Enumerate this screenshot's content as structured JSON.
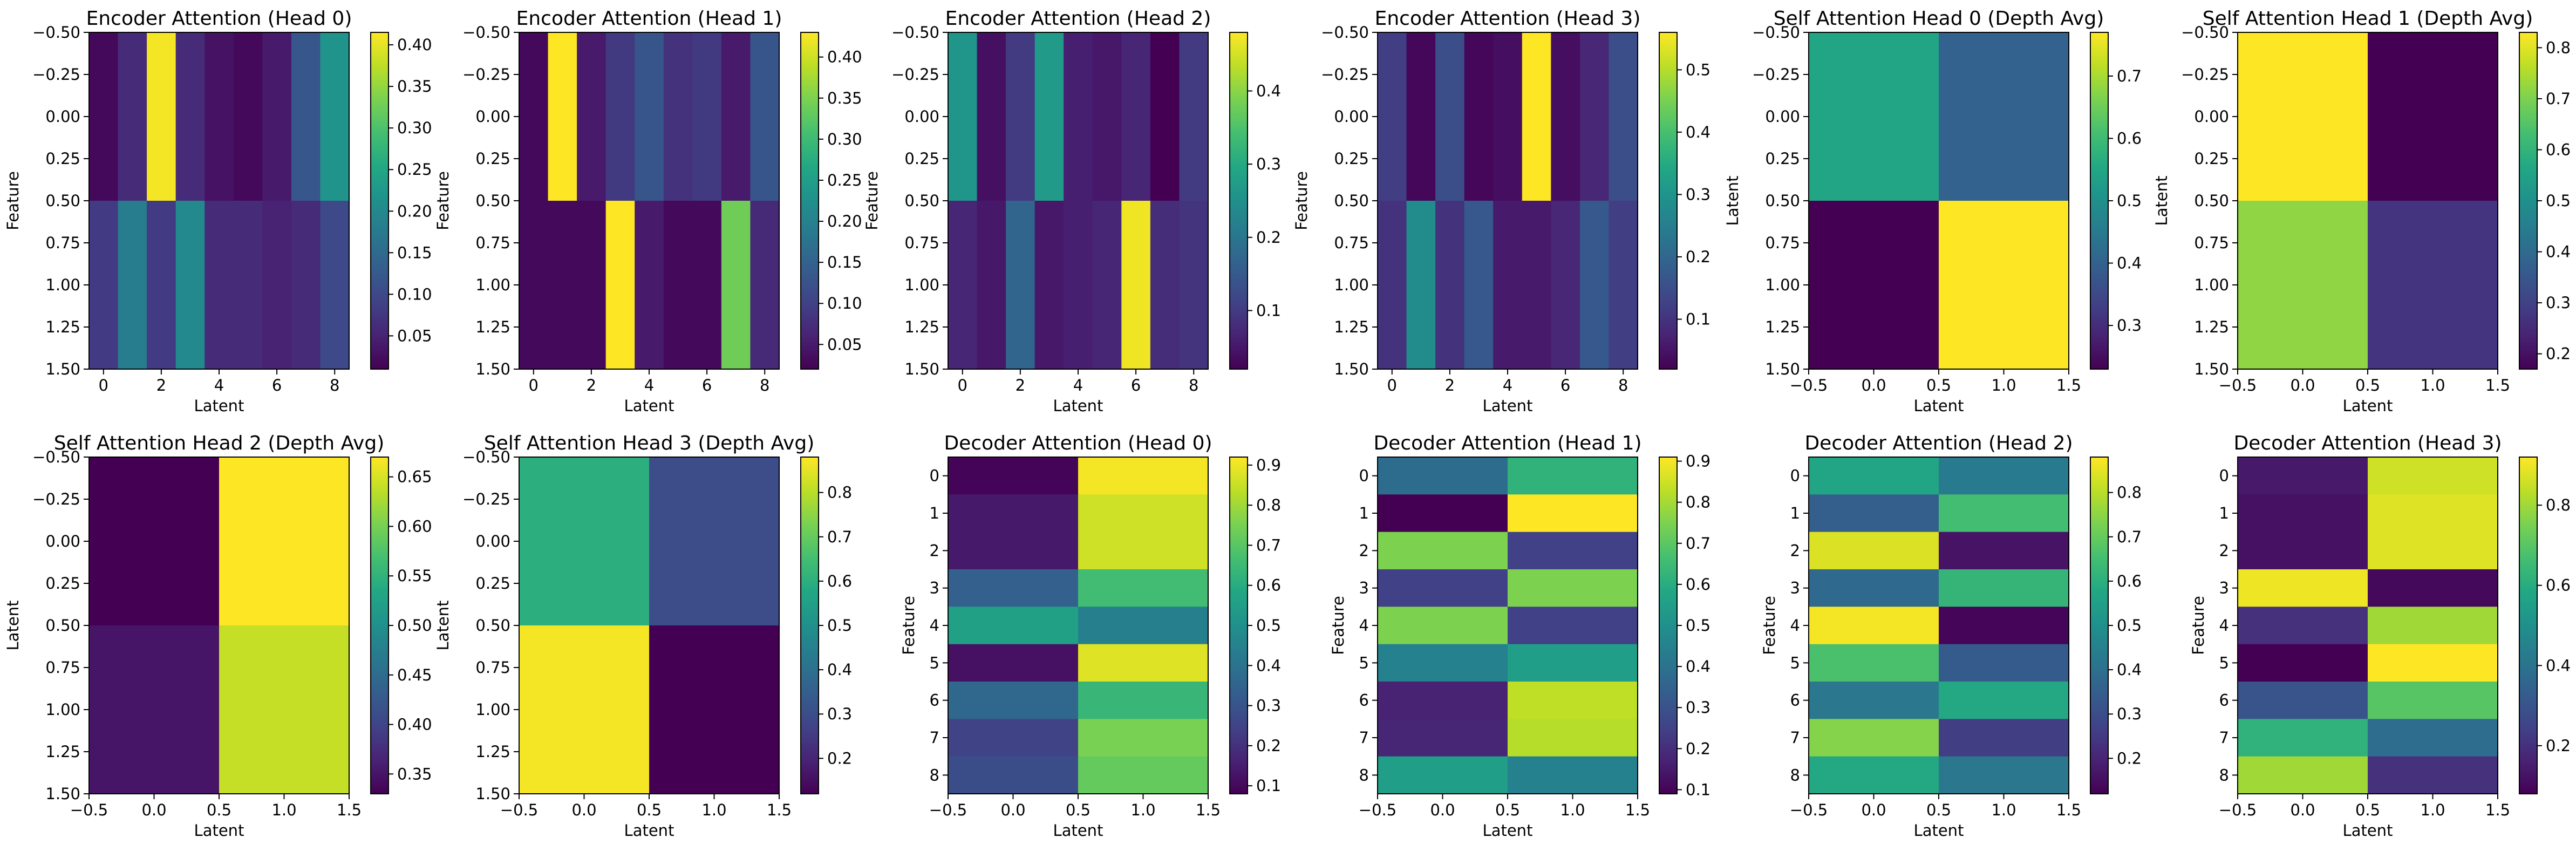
{
  "chart_data": [
    {
      "type": "heatmap",
      "title": "Encoder Attention (Head 0)",
      "xlabel": "Latent",
      "ylabel": "Feature",
      "values": [
        [
          0.02,
          0.06,
          0.41,
          0.06,
          0.03,
          0.02,
          0.04,
          0.12,
          0.22
        ],
        [
          0.08,
          0.18,
          0.08,
          0.2,
          0.06,
          0.06,
          0.05,
          0.06,
          0.1
        ]
      ],
      "x_extent": [
        -0.5,
        8.5
      ],
      "y_extent": [
        -0.5,
        1.5
      ],
      "xticks": [
        0,
        2,
        4,
        6,
        8
      ],
      "xtick_labels": [
        "0",
        "2",
        "4",
        "6",
        "8"
      ],
      "yticks": [
        -0.5,
        -0.25,
        0,
        0.25,
        0.5,
        0.75,
        1,
        1.25,
        1.5
      ],
      "ytick_labels": [
        "−0.50",
        "−0.25",
        "0.00",
        "0.25",
        "0.50",
        "0.75",
        "1.00",
        "1.25",
        "1.50"
      ],
      "colorbar": {
        "min": 0.01,
        "max": 0.415,
        "ticks": [
          "0.05",
          "0.10",
          "0.15",
          "0.20",
          "0.25",
          "0.30",
          "0.35",
          "0.40"
        ]
      }
    },
    {
      "type": "heatmap",
      "title": "Encoder Attention (Head 1)",
      "xlabel": "Latent",
      "ylabel": "Feature",
      "values": [
        [
          0.03,
          0.43,
          0.05,
          0.09,
          0.13,
          0.08,
          0.09,
          0.05,
          0.13
        ],
        [
          0.03,
          0.03,
          0.03,
          0.43,
          0.05,
          0.03,
          0.03,
          0.34,
          0.07
        ]
      ],
      "x_extent": [
        -0.5,
        8.5
      ],
      "y_extent": [
        -0.5,
        1.5
      ],
      "xticks": [
        0,
        2,
        4,
        6,
        8
      ],
      "xtick_labels": [
        "0",
        "2",
        "4",
        "6",
        "8"
      ],
      "yticks": [
        -0.5,
        -0.25,
        0,
        0.25,
        0.5,
        0.75,
        1,
        1.25,
        1.5
      ],
      "ytick_labels": [
        "−0.50",
        "−0.25",
        "0.00",
        "0.25",
        "0.50",
        "0.75",
        "1.00",
        "1.25",
        "1.50"
      ],
      "colorbar": {
        "min": 0.02,
        "max": 0.43,
        "ticks": [
          "0.05",
          "0.10",
          "0.15",
          "0.20",
          "0.25",
          "0.30",
          "0.35",
          "0.40"
        ]
      }
    },
    {
      "type": "heatmap",
      "title": "Encoder Attention (Head 2)",
      "xlabel": "Latent",
      "ylabel": "Feature",
      "values": [
        [
          0.26,
          0.04,
          0.1,
          0.27,
          0.06,
          0.05,
          0.07,
          0.02,
          0.1
        ],
        [
          0.07,
          0.05,
          0.17,
          0.05,
          0.06,
          0.07,
          0.47,
          0.08,
          0.09
        ]
      ],
      "x_extent": [
        -0.5,
        8.5
      ],
      "y_extent": [
        -0.5,
        1.5
      ],
      "xticks": [
        0,
        2,
        4,
        6,
        8
      ],
      "xtick_labels": [
        "0",
        "2",
        "4",
        "6",
        "8"
      ],
      "yticks": [
        -0.5,
        -0.25,
        0,
        0.25,
        0.5,
        0.75,
        1,
        1.25,
        1.5
      ],
      "ytick_labels": [
        "−0.50",
        "−0.25",
        "0.00",
        "0.25",
        "0.50",
        "0.75",
        "1.00",
        "1.25",
        "1.50"
      ],
      "colorbar": {
        "min": 0.02,
        "max": 0.48,
        "ticks": [
          "0.1",
          "0.2",
          "0.3",
          "0.4"
        ]
      }
    },
    {
      "type": "heatmap",
      "title": "Encoder Attention (Head 3)",
      "xlabel": "Latent",
      "ylabel": "Feature",
      "values": [
        [
          0.12,
          0.03,
          0.15,
          0.03,
          0.04,
          0.56,
          0.04,
          0.08,
          0.15
        ],
        [
          0.1,
          0.28,
          0.1,
          0.17,
          0.06,
          0.06,
          0.08,
          0.17,
          0.12
        ]
      ],
      "x_extent": [
        -0.5,
        8.5
      ],
      "y_extent": [
        -0.5,
        1.5
      ],
      "xticks": [
        0,
        2,
        4,
        6,
        8
      ],
      "xtick_labels": [
        "0",
        "2",
        "4",
        "6",
        "8"
      ],
      "yticks": [
        -0.5,
        -0.25,
        0,
        0.25,
        0.5,
        0.75,
        1,
        1.25,
        1.5
      ],
      "ytick_labels": [
        "−0.50",
        "−0.25",
        "0.00",
        "0.25",
        "0.50",
        "0.75",
        "1.00",
        "1.25",
        "1.50"
      ],
      "colorbar": {
        "min": 0.02,
        "max": 0.56,
        "ticks": [
          "0.1",
          "0.2",
          "0.3",
          "0.4",
          "0.5"
        ]
      }
    },
    {
      "type": "heatmap",
      "title": "Self Attention Head 0 (Depth Avg)",
      "xlabel": "Latent",
      "ylabel": "Latent",
      "values": [
        [
          0.55,
          0.4
        ],
        [
          0.23,
          0.77
        ]
      ],
      "x_extent": [
        -0.5,
        1.5
      ],
      "y_extent": [
        -0.5,
        1.5
      ],
      "xticks": [
        -0.5,
        0,
        0.5,
        1,
        1.5
      ],
      "xtick_labels": [
        "−0.5",
        "0.0",
        "0.5",
        "1.0",
        "1.5"
      ],
      "yticks": [
        -0.5,
        -0.25,
        0,
        0.25,
        0.5,
        0.75,
        1,
        1.25,
        1.5
      ],
      "ytick_labels": [
        "−0.50",
        "−0.25",
        "0.00",
        "0.25",
        "0.50",
        "0.75",
        "1.00",
        "1.25",
        "1.50"
      ],
      "colorbar": {
        "min": 0.23,
        "max": 0.77,
        "ticks": [
          "0.3",
          "0.4",
          "0.5",
          "0.6",
          "0.7"
        ]
      }
    },
    {
      "type": "heatmap",
      "title": "Self Attention Head 1 (Depth Avg)",
      "xlabel": "Latent",
      "ylabel": "Latent",
      "values": [
        [
          0.83,
          0.17
        ],
        [
          0.72,
          0.27
        ]
      ],
      "x_extent": [
        -0.5,
        1.5
      ],
      "y_extent": [
        -0.5,
        1.5
      ],
      "xticks": [
        -0.5,
        0,
        0.5,
        1,
        1.5
      ],
      "xtick_labels": [
        "−0.5",
        "0.0",
        "0.5",
        "1.0",
        "1.5"
      ],
      "yticks": [
        -0.5,
        -0.25,
        0,
        0.25,
        0.5,
        0.75,
        1,
        1.25,
        1.5
      ],
      "ytick_labels": [
        "−0.50",
        "−0.25",
        "0.00",
        "0.25",
        "0.50",
        "0.75",
        "1.00",
        "1.25",
        "1.50"
      ],
      "colorbar": {
        "min": 0.17,
        "max": 0.83,
        "ticks": [
          "0.2",
          "0.3",
          "0.4",
          "0.5",
          "0.6",
          "0.7",
          "0.8"
        ]
      }
    },
    {
      "type": "heatmap",
      "title": "Self Attention Head 2 (Depth Avg)",
      "xlabel": "Latent",
      "ylabel": "Latent",
      "values": [
        [
          0.33,
          0.67
        ],
        [
          0.35,
          0.64
        ]
      ],
      "x_extent": [
        -0.5,
        1.5
      ],
      "y_extent": [
        -0.5,
        1.5
      ],
      "xticks": [
        -0.5,
        0,
        0.5,
        1,
        1.5
      ],
      "xtick_labels": [
        "−0.5",
        "0.0",
        "0.5",
        "1.0",
        "1.5"
      ],
      "yticks": [
        -0.5,
        -0.25,
        0,
        0.25,
        0.5,
        0.75,
        1,
        1.25,
        1.5
      ],
      "ytick_labels": [
        "−0.50",
        "−0.25",
        "0.00",
        "0.25",
        "0.50",
        "0.75",
        "1.00",
        "1.25",
        "1.50"
      ],
      "colorbar": {
        "min": 0.33,
        "max": 0.67,
        "ticks": [
          "0.35",
          "0.40",
          "0.45",
          "0.50",
          "0.55",
          "0.60",
          "0.65"
        ]
      }
    },
    {
      "type": "heatmap",
      "title": "Self Attention Head 3 (Depth Avg)",
      "xlabel": "Latent",
      "ylabel": "Latent",
      "values": [
        [
          0.6,
          0.3
        ],
        [
          0.87,
          0.12
        ]
      ],
      "x_extent": [
        -0.5,
        1.5
      ],
      "y_extent": [
        -0.5,
        1.5
      ],
      "xticks": [
        -0.5,
        0,
        0.5,
        1,
        1.5
      ],
      "xtick_labels": [
        "−0.5",
        "0.0",
        "0.5",
        "1.0",
        "1.5"
      ],
      "yticks": [
        -0.5,
        -0.25,
        0,
        0.25,
        0.5,
        0.75,
        1,
        1.25,
        1.5
      ],
      "ytick_labels": [
        "−0.50",
        "−0.25",
        "0.00",
        "0.25",
        "0.50",
        "0.75",
        "1.00",
        "1.25",
        "1.50"
      ],
      "colorbar": {
        "min": 0.12,
        "max": 0.88,
        "ticks": [
          "0.2",
          "0.3",
          "0.4",
          "0.5",
          "0.6",
          "0.7",
          "0.8"
        ]
      }
    },
    {
      "type": "heatmap",
      "title": "Decoder Attention (Head 0)",
      "xlabel": "Latent",
      "ylabel": "Feature",
      "values": [
        [
          0.09,
          0.91
        ],
        [
          0.14,
          0.86
        ],
        [
          0.14,
          0.86
        ],
        [
          0.34,
          0.66
        ],
        [
          0.56,
          0.44
        ],
        [
          0.12,
          0.88
        ],
        [
          0.36,
          0.64
        ],
        [
          0.25,
          0.75
        ],
        [
          0.28,
          0.72
        ]
      ],
      "x_extent": [
        -0.5,
        1.5
      ],
      "y_extent": [
        -0.5,
        8.5
      ],
      "xticks": [
        -0.5,
        0,
        0.5,
        1,
        1.5
      ],
      "xtick_labels": [
        "−0.5",
        "0.0",
        "0.5",
        "1.0",
        "1.5"
      ],
      "yticks": [
        0,
        1,
        2,
        3,
        4,
        5,
        6,
        7,
        8
      ],
      "ytick_labels": [
        "0",
        "1",
        "2",
        "3",
        "4",
        "5",
        "6",
        "7",
        "8"
      ],
      "colorbar": {
        "min": 0.08,
        "max": 0.92,
        "ticks": [
          "0.1",
          "0.2",
          "0.3",
          "0.4",
          "0.5",
          "0.6",
          "0.7",
          "0.8",
          "0.9"
        ]
      }
    },
    {
      "type": "heatmap",
      "title": "Decoder Attention (Head 1)",
      "xlabel": "Latent",
      "ylabel": "Feature",
      "values": [
        [
          0.38,
          0.62
        ],
        [
          0.09,
          0.91
        ],
        [
          0.75,
          0.25
        ],
        [
          0.25,
          0.75
        ],
        [
          0.75,
          0.25
        ],
        [
          0.45,
          0.55
        ],
        [
          0.17,
          0.83
        ],
        [
          0.18,
          0.82
        ],
        [
          0.55,
          0.45
        ]
      ],
      "x_extent": [
        -0.5,
        1.5
      ],
      "y_extent": [
        -0.5,
        8.5
      ],
      "xticks": [
        -0.5,
        0,
        0.5,
        1,
        1.5
      ],
      "xtick_labels": [
        "−0.5",
        "0.0",
        "0.5",
        "1.0",
        "1.5"
      ],
      "yticks": [
        0,
        1,
        2,
        3,
        4,
        5,
        6,
        7,
        8
      ],
      "ytick_labels": [
        "0",
        "1",
        "2",
        "3",
        "4",
        "5",
        "6",
        "7",
        "8"
      ],
      "colorbar": {
        "min": 0.09,
        "max": 0.91,
        "ticks": [
          "0.1",
          "0.2",
          "0.3",
          "0.4",
          "0.5",
          "0.6",
          "0.7",
          "0.8",
          "0.9"
        ]
      }
    },
    {
      "type": "heatmap",
      "title": "Decoder Attention (Head 2)",
      "xlabel": "Latent",
      "ylabel": "Feature",
      "values": [
        [
          0.57,
          0.43
        ],
        [
          0.35,
          0.65
        ],
        [
          0.84,
          0.16
        ],
        [
          0.38,
          0.62
        ],
        [
          0.87,
          0.13
        ],
        [
          0.66,
          0.34
        ],
        [
          0.42,
          0.58
        ],
        [
          0.74,
          0.26
        ],
        [
          0.58,
          0.42
        ]
      ],
      "x_extent": [
        -0.5,
        1.5
      ],
      "y_extent": [
        -0.5,
        8.5
      ],
      "xticks": [
        -0.5,
        0,
        0.5,
        1,
        1.5
      ],
      "xtick_labels": [
        "−0.5",
        "0.0",
        "0.5",
        "1.0",
        "1.5"
      ],
      "yticks": [
        0,
        1,
        2,
        3,
        4,
        5,
        6,
        7,
        8
      ],
      "ytick_labels": [
        "0",
        "1",
        "2",
        "3",
        "4",
        "5",
        "6",
        "7",
        "8"
      ],
      "colorbar": {
        "min": 0.12,
        "max": 0.88,
        "ticks": [
          "0.2",
          "0.3",
          "0.4",
          "0.5",
          "0.6",
          "0.7",
          "0.8"
        ]
      }
    },
    {
      "type": "heatmap",
      "title": "Decoder Attention (Head 3)",
      "xlabel": "Latent",
      "ylabel": "Feature",
      "values": [
        [
          0.14,
          0.86
        ],
        [
          0.12,
          0.88
        ],
        [
          0.12,
          0.88
        ],
        [
          0.9,
          0.1
        ],
        [
          0.2,
          0.8
        ],
        [
          0.08,
          0.92
        ],
        [
          0.3,
          0.7
        ],
        [
          0.62,
          0.38
        ],
        [
          0.8,
          0.2
        ]
      ],
      "x_extent": [
        -0.5,
        1.5
      ],
      "y_extent": [
        -0.5,
        8.5
      ],
      "xticks": [
        -0.5,
        0,
        0.5,
        1,
        1.5
      ],
      "xtick_labels": [
        "−0.5",
        "0.0",
        "0.5",
        "1.0",
        "1.5"
      ],
      "yticks": [
        0,
        1,
        2,
        3,
        4,
        5,
        6,
        7,
        8
      ],
      "ytick_labels": [
        "0",
        "1",
        "2",
        "3",
        "4",
        "5",
        "6",
        "7",
        "8"
      ],
      "colorbar": {
        "min": 0.08,
        "max": 0.92,
        "ticks": [
          "0.2",
          "0.4",
          "0.6",
          "0.8"
        ]
      }
    }
  ]
}
